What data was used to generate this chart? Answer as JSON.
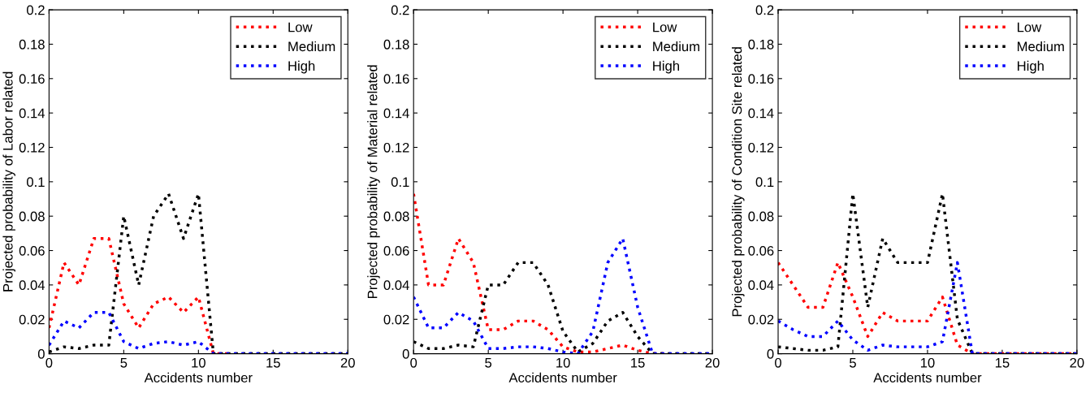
{
  "chart_data": [
    {
      "type": "line",
      "xlabel": "Accidents number",
      "ylabel": "Projected probability of Labor related",
      "x": [
        0,
        1,
        2,
        3,
        4,
        5,
        6,
        7,
        8,
        9,
        10,
        11,
        12,
        13,
        14,
        15,
        16,
        17,
        18,
        19,
        20
      ],
      "xlim": [
        0,
        20
      ],
      "ylim": [
        0,
        0.2
      ],
      "xticks": [
        0,
        5,
        10,
        15,
        20
      ],
      "yticks": [
        0,
        0.02,
        0.04,
        0.06,
        0.08,
        0.1,
        0.12,
        0.14,
        0.16,
        0.18,
        0.2
      ],
      "grid": false,
      "legend": "top right",
      "line_style": "dotted",
      "marker": "none",
      "series": [
        {
          "name": "Low",
          "color": "#ff0000",
          "values": [
            0.015,
            0.053,
            0.04,
            0.067,
            0.067,
            0.029,
            0.015,
            0.029,
            0.033,
            0.024,
            0.033,
            0,
            0,
            null,
            null,
            null,
            null,
            null,
            null,
            null,
            null
          ]
        },
        {
          "name": "Medium",
          "color": "#000000",
          "values": [
            0.001,
            0.004,
            0.003,
            0.005,
            0.005,
            0.08,
            0.04,
            0.08,
            0.093,
            0.067,
            0.093,
            0,
            0,
            0,
            0,
            0,
            0,
            0,
            0,
            0,
            0
          ]
        },
        {
          "name": "High",
          "color": "#0000ff",
          "values": [
            0.005,
            0.019,
            0.015,
            0.024,
            0.024,
            0.007,
            0.003,
            0.006,
            0.007,
            0.005,
            0.007,
            0,
            0,
            0,
            0,
            0,
            0,
            0,
            0,
            0,
            0
          ]
        }
      ]
    },
    {
      "type": "line",
      "xlabel": "Accidents number",
      "ylabel": "Projected probability of Material related",
      "x": [
        0,
        1,
        2,
        3,
        4,
        5,
        6,
        7,
        8,
        9,
        10,
        11,
        12,
        13,
        14,
        15,
        16,
        17,
        18,
        19,
        20
      ],
      "xlim": [
        0,
        20
      ],
      "ylim": [
        0,
        0.2
      ],
      "xticks": [
        0,
        5,
        10,
        15,
        20
      ],
      "yticks": [
        0,
        0.02,
        0.04,
        0.06,
        0.08,
        0.1,
        0.12,
        0.14,
        0.16,
        0.18,
        0.2
      ],
      "grid": false,
      "legend": "top right",
      "line_style": "dotted",
      "marker": "none",
      "series": [
        {
          "name": "Low",
          "color": "#ff0000",
          "values": [
            0.093,
            0.04,
            0.04,
            0.067,
            0.053,
            0.014,
            0.014,
            0.019,
            0.019,
            0.014,
            0.004,
            0.001,
            0.001,
            0.003,
            0.005,
            0.002,
            0,
            0,
            null,
            null,
            null
          ]
        },
        {
          "name": "Medium",
          "color": "#000000",
          "values": [
            0.007,
            0.003,
            0.003,
            0.005,
            0.004,
            0.04,
            0.04,
            0.053,
            0.053,
            0.04,
            0.013,
            0.001,
            0.006,
            0.019,
            0.024,
            0.01,
            0,
            0,
            0,
            0,
            0
          ]
        },
        {
          "name": "High",
          "color": "#0000ff",
          "values": [
            0.033,
            0.015,
            0.015,
            0.024,
            0.019,
            0.003,
            0.003,
            0.004,
            0.004,
            0.003,
            0.001,
            0,
            0.013,
            0.053,
            0.067,
            0.027,
            0,
            0,
            0,
            0,
            0
          ]
        }
      ]
    },
    {
      "type": "line",
      "xlabel": "Accidents number",
      "ylabel": "Projected probability of Condition Site related",
      "x": [
        0,
        1,
        2,
        3,
        4,
        5,
        6,
        7,
        8,
        9,
        10,
        11,
        12,
        13,
        14,
        15,
        16,
        17,
        18,
        19,
        20
      ],
      "xlim": [
        0,
        20
      ],
      "ylim": [
        0,
        0.2
      ],
      "xticks": [
        0,
        5,
        10,
        15,
        20
      ],
      "yticks": [
        0,
        0.02,
        0.04,
        0.06,
        0.08,
        0.1,
        0.12,
        0.14,
        0.16,
        0.18,
        0.2
      ],
      "grid": false,
      "legend": "top right",
      "line_style": "dotted",
      "marker": "none",
      "series": [
        {
          "name": "Low",
          "color": "#ff0000",
          "values": [
            0.053,
            0.04,
            0.027,
            0.027,
            0.053,
            0.033,
            0.01,
            0.024,
            0.019,
            0.019,
            0.019,
            0.033,
            0.005,
            0,
            0,
            0,
            0,
            0,
            0,
            0,
            0
          ]
        },
        {
          "name": "Medium",
          "color": "#000000",
          "values": [
            0.004,
            0.003,
            0.002,
            0.002,
            0.004,
            0.093,
            0.027,
            0.067,
            0.053,
            0.053,
            0.053,
            0.093,
            0.02,
            0,
            0,
            0,
            0,
            0,
            0,
            0,
            0
          ]
        },
        {
          "name": "High",
          "color": "#0000ff",
          "values": [
            0.019,
            0.014,
            0.01,
            0.01,
            0.019,
            0.008,
            0.002,
            0.005,
            0.004,
            0.004,
            0.004,
            0.007,
            0.053,
            0,
            0,
            0,
            0,
            0,
            0,
            0,
            0
          ]
        }
      ]
    }
  ]
}
